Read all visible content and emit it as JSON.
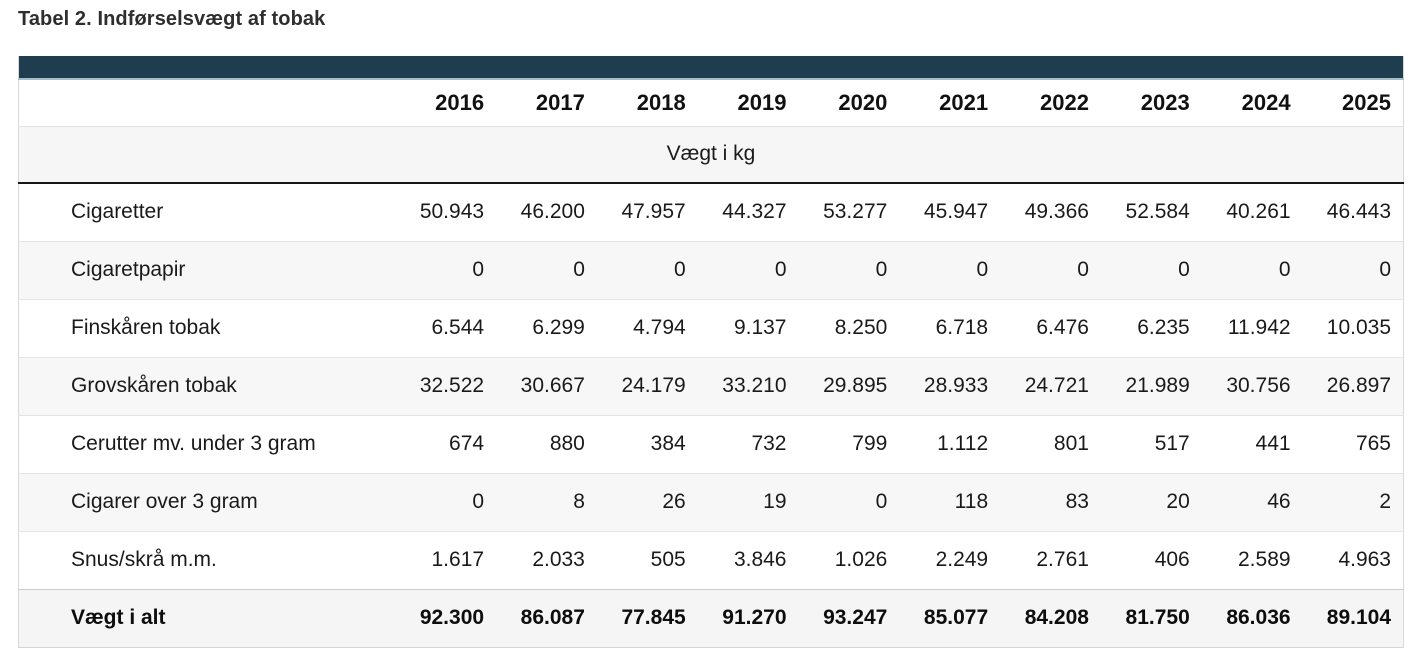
{
  "title": "Tabel 2. Indførselsvægt af tobak",
  "table": {
    "years": [
      "2016",
      "2017",
      "2018",
      "2019",
      "2020",
      "2021",
      "2022",
      "2023",
      "2024",
      "2025"
    ],
    "unit_header": "Vægt i kg",
    "rows": [
      {
        "label": "Cigaretter",
        "values": [
          "50.943",
          "46.200",
          "47.957",
          "44.327",
          "53.277",
          "45.947",
          "49.366",
          "52.584",
          "40.261",
          "46.443"
        ],
        "bold": false
      },
      {
        "label": "Cigaretpapir",
        "values": [
          "0",
          "0",
          "0",
          "0",
          "0",
          "0",
          "0",
          "0",
          "0",
          "0"
        ],
        "bold": false
      },
      {
        "label": "Finskåren tobak",
        "values": [
          "6.544",
          "6.299",
          "4.794",
          "9.137",
          "8.250",
          "6.718",
          "6.476",
          "6.235",
          "11.942",
          "10.035"
        ],
        "bold": false
      },
      {
        "label": "Grovskåren tobak",
        "values": [
          "32.522",
          "30.667",
          "24.179",
          "33.210",
          "29.895",
          "28.933",
          "24.721",
          "21.989",
          "30.756",
          "26.897"
        ],
        "bold": false
      },
      {
        "label": "Cerutter mv. under 3 gram",
        "values": [
          "674",
          "880",
          "384",
          "732",
          "799",
          "1.112",
          "801",
          "517",
          "441",
          "765"
        ],
        "bold": false
      },
      {
        "label": "Cigarer over 3 gram",
        "values": [
          "0",
          "8",
          "26",
          "19",
          "0",
          "118",
          "83",
          "20",
          "46",
          "2"
        ],
        "bold": false
      },
      {
        "label": "Snus/skrå m.m.",
        "values": [
          "1.617",
          "2.033",
          "505",
          "3.846",
          "1.026",
          "2.249",
          "2.761",
          "406",
          "2.589",
          "4.963"
        ],
        "bold": false
      },
      {
        "label": "Vægt i alt",
        "values": [
          "92.300",
          "86.087",
          "77.845",
          "91.270",
          "93.247",
          "85.077",
          "84.208",
          "81.750",
          "86.036",
          "89.104"
        ],
        "bold": true
      }
    ]
  },
  "colors": {
    "accent_bar": "#1e3e4f",
    "accent_bar_edge": "#a4bfc9",
    "stripe": "#f7f7f7",
    "total_row_bg": "#f5f5f5",
    "heavy_rule": "#161616",
    "light_rule": "#e4e4e4"
  },
  "chart_data": {
    "type": "table",
    "title": "Tabel 2. Indførselsvægt af tobak",
    "unit": "Vægt i kg",
    "categories": [
      "2016",
      "2017",
      "2018",
      "2019",
      "2020",
      "2021",
      "2022",
      "2023",
      "2024",
      "2025"
    ],
    "series": [
      {
        "name": "Cigaretter",
        "values": [
          50943,
          46200,
          47957,
          44327,
          53277,
          45947,
          49366,
          52584,
          40261,
          46443
        ]
      },
      {
        "name": "Cigaretpapir",
        "values": [
          0,
          0,
          0,
          0,
          0,
          0,
          0,
          0,
          0,
          0
        ]
      },
      {
        "name": "Finskåren tobak",
        "values": [
          6544,
          6299,
          4794,
          9137,
          8250,
          6718,
          6476,
          6235,
          11942,
          10035
        ]
      },
      {
        "name": "Grovskåren tobak",
        "values": [
          32522,
          30667,
          24179,
          33210,
          29895,
          28933,
          24721,
          21989,
          30756,
          26897
        ]
      },
      {
        "name": "Cerutter mv. under 3 gram",
        "values": [
          674,
          880,
          384,
          732,
          799,
          1112,
          801,
          517,
          441,
          765
        ]
      },
      {
        "name": "Cigarer over 3 gram",
        "values": [
          0,
          8,
          26,
          19,
          0,
          118,
          83,
          20,
          46,
          2
        ]
      },
      {
        "name": "Snus/skrå m.m.",
        "values": [
          1617,
          2033,
          505,
          3846,
          1026,
          2249,
          2761,
          406,
          2589,
          4963
        ]
      },
      {
        "name": "Vægt i alt",
        "values": [
          92300,
          86087,
          77845,
          91270,
          93247,
          85077,
          84208,
          81750,
          86036,
          89104
        ]
      }
    ],
    "layout": {
      "number_format": "da-DK thousands separator '.'",
      "first_column": "category labels",
      "total_row": "Vægt i alt"
    }
  }
}
